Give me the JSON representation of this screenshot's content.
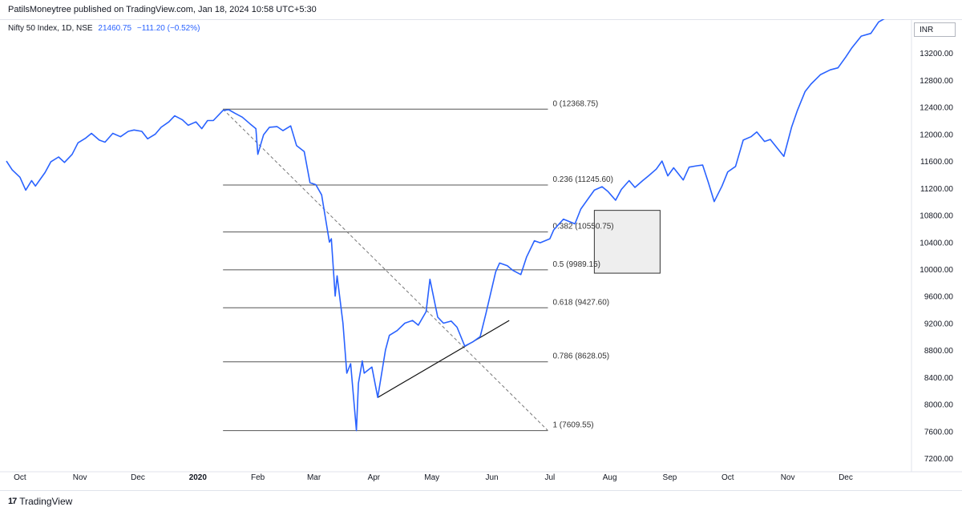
{
  "publisher": "PatilsMoneytree published on TradingView.com, Jan 18, 2024 10:58 UTC+5:30",
  "legend": {
    "symbol": "Nifty 50 Index, 1D, NSE",
    "last": "21460.75",
    "change": "−111.20 (−0.52%)"
  },
  "currency_label": "INR",
  "footer": {
    "brand": "TradingView",
    "logo_icon": "tradingview-logo-icon"
  },
  "colors": {
    "price_line": "#2962ff",
    "fib_line": "#555555",
    "axis_text": "#131722"
  },
  "chart_data": {
    "type": "line",
    "title": "",
    "xlabel": "",
    "ylabel": "",
    "ylim": [
      7000,
      13700
    ],
    "y_ticks": [
      7200,
      7600,
      8000,
      8400,
      8800,
      9200,
      9600,
      10000,
      10400,
      10800,
      11200,
      11600,
      12000,
      12400,
      12800,
      13200
    ],
    "y_tick_labels": [
      "7200.00",
      "7600.00",
      "8000.00",
      "8400.00",
      "8800.00",
      "9200.00",
      "9600.00",
      "10000.00",
      "10400.00",
      "10800.00",
      "11200.00",
      "11600.00",
      "12000.00",
      "12400.00",
      "12800.00",
      "13200.00"
    ],
    "x_labels": [
      {
        "label": "Oct",
        "date": "2019-10-01",
        "bold": false
      },
      {
        "label": "Nov",
        "date": "2019-11-01",
        "bold": false
      },
      {
        "label": "Dec",
        "date": "2019-12-01",
        "bold": false
      },
      {
        "label": "2020",
        "date": "2020-01-01",
        "bold": true
      },
      {
        "label": "Feb",
        "date": "2020-02-01",
        "bold": false
      },
      {
        "label": "Mar",
        "date": "2020-03-01",
        "bold": false
      },
      {
        "label": "Apr",
        "date": "2020-04-01",
        "bold": false
      },
      {
        "label": "May",
        "date": "2020-05-01",
        "bold": false
      },
      {
        "label": "Jun",
        "date": "2020-06-01",
        "bold": false
      },
      {
        "label": "Jul",
        "date": "2020-07-01",
        "bold": false
      },
      {
        "label": "Aug",
        "date": "2020-08-01",
        "bold": false
      },
      {
        "label": "Sep",
        "date": "2020-09-01",
        "bold": false
      },
      {
        "label": "Oct",
        "date": "2020-10-01",
        "bold": false
      },
      {
        "label": "Nov",
        "date": "2020-11-01",
        "bold": false
      },
      {
        "label": "Dec",
        "date": "2020-12-01",
        "bold": false
      }
    ],
    "series": [
      {
        "x": [
          "2019-09-24",
          "2019-09-27",
          "2019-10-01",
          "2019-10-04",
          "2019-10-07",
          "2019-10-09",
          "2019-10-11",
          "2019-10-14",
          "2019-10-17",
          "2019-10-21",
          "2019-10-24",
          "2019-10-28",
          "2019-10-31",
          "2019-11-04",
          "2019-11-07",
          "2019-11-11",
          "2019-11-14",
          "2019-11-18",
          "2019-11-22",
          "2019-11-26",
          "2019-11-29",
          "2019-12-03",
          "2019-12-06",
          "2019-12-10",
          "2019-12-13",
          "2019-12-17",
          "2019-12-20",
          "2019-12-24",
          "2019-12-27",
          "2019-12-31",
          "2020-01-03",
          "2020-01-06",
          "2020-01-09",
          "2020-01-14",
          "2020-01-17",
          "2020-01-20",
          "2020-01-24",
          "2020-01-28",
          "2020-01-31",
          "2020-02-01",
          "2020-02-04",
          "2020-02-07",
          "2020-02-11",
          "2020-02-14",
          "2020-02-18",
          "2020-02-21",
          "2020-02-25",
          "2020-02-28",
          "2020-03-02",
          "2020-03-05",
          "2020-03-09",
          "2020-03-10",
          "2020-03-12",
          "2020-03-13",
          "2020-03-16",
          "2020-03-18",
          "2020-03-20",
          "2020-03-23",
          "2020-03-24",
          "2020-03-26",
          "2020-03-27",
          "2020-03-31",
          "2020-04-03",
          "2020-04-07",
          "2020-04-09",
          "2020-04-13",
          "2020-04-17",
          "2020-04-21",
          "2020-04-24",
          "2020-04-28",
          "2020-04-30",
          "2020-05-04",
          "2020-05-07",
          "2020-05-11",
          "2020-05-14",
          "2020-05-18",
          "2020-05-22",
          "2020-05-26",
          "2020-05-29",
          "2020-06-03",
          "2020-06-05",
          "2020-06-09",
          "2020-06-12",
          "2020-06-16",
          "2020-06-19",
          "2020-06-23",
          "2020-06-26",
          "2020-07-01",
          "2020-07-03",
          "2020-07-08",
          "2020-07-14",
          "2020-07-17",
          "2020-07-21",
          "2020-07-24",
          "2020-07-28",
          "2020-07-31",
          "2020-08-04",
          "2020-08-07",
          "2020-08-11",
          "2020-08-14",
          "2020-08-18",
          "2020-08-21",
          "2020-08-25",
          "2020-08-28",
          "2020-08-31",
          "2020-09-03",
          "2020-09-08",
          "2020-09-11",
          "2020-09-15",
          "2020-09-18",
          "2020-09-21",
          "2020-09-24",
          "2020-09-28",
          "2020-10-01",
          "2020-10-05",
          "2020-10-09",
          "2020-10-13",
          "2020-10-16",
          "2020-10-20",
          "2020-10-23",
          "2020-10-28",
          "2020-10-30",
          "2020-11-03",
          "2020-11-06",
          "2020-11-10",
          "2020-11-13",
          "2020-11-18",
          "2020-11-23",
          "2020-11-27",
          "2020-12-01",
          "2020-12-04",
          "2020-12-09",
          "2020-12-14",
          "2020-12-18",
          "2020-12-23",
          "2020-12-28",
          "2020-12-31"
        ],
        "values": [
          11600,
          11470,
          11360,
          11170,
          11310,
          11230,
          11310,
          11430,
          11590,
          11660,
          11580,
          11700,
          11870,
          11940,
          12010,
          11910,
          11880,
          12010,
          11960,
          12040,
          12060,
          12040,
          11930,
          12000,
          12100,
          12180,
          12270,
          12210,
          12130,
          12180,
          12080,
          12200,
          12200,
          12350,
          12360,
          12310,
          12250,
          12150,
          12080,
          11700,
          11990,
          12100,
          12110,
          12050,
          12120,
          11830,
          11740,
          11280,
          11250,
          11100,
          10400,
          10450,
          9600,
          9900,
          9200,
          8460,
          8600,
          7610,
          8310,
          8640,
          8460,
          8550,
          8100,
          8800,
          9020,
          9090,
          9200,
          9240,
          9170,
          9370,
          9850,
          9290,
          9200,
          9230,
          9140,
          8860,
          8920,
          9000,
          9350,
          9960,
          10090,
          10050,
          9980,
          9920,
          10180,
          10420,
          10390,
          10450,
          10580,
          10740,
          10670,
          10890,
          11050,
          11170,
          11220,
          11150,
          11020,
          11180,
          11310,
          11210,
          11310,
          11380,
          11480,
          11600,
          11380,
          11500,
          11320,
          11510,
          11530,
          11540,
          11280,
          11000,
          11230,
          11440,
          11520,
          11910,
          11960,
          12030,
          11890,
          11920,
          11740,
          11670,
          12100,
          12350,
          12630,
          12740,
          12880,
          12950,
          12980,
          13140,
          13270,
          13450,
          13490,
          13660,
          13740,
          13880,
          13980
        ]
      }
    ],
    "fib_retracement": {
      "start_date": "2020-01-14",
      "end_date": "2020-06-30",
      "levels": [
        {
          "ratio": "0",
          "price": 12368.75,
          "label": "0 (12368.75)"
        },
        {
          "ratio": "0.236",
          "price": 11245.6,
          "label": "0.236 (11245.60)"
        },
        {
          "ratio": "0.382",
          "price": 10550.75,
          "label": "0.382 (10550.75)"
        },
        {
          "ratio": "0.5",
          "price": 9989.15,
          "label": "0.5 (9989.15)"
        },
        {
          "ratio": "0.618",
          "price": 9427.6,
          "label": "0.618 (9427.60)"
        },
        {
          "ratio": "0.786",
          "price": 8628.05,
          "label": "0.786 (8628.05)"
        },
        {
          "ratio": "1",
          "price": 7609.55,
          "label": "1 (7609.55)"
        }
      ]
    },
    "trend_line_dashed": {
      "start": {
        "date": "2020-01-14",
        "price": 12368.75
      },
      "end": {
        "date": "2020-06-30",
        "price": 7609.55
      }
    },
    "trend_line_solid": {
      "start": {
        "date": "2020-04-03",
        "price": 8100
      },
      "end": {
        "date": "2020-06-10",
        "price": 9240
      }
    },
    "highlight_box": {
      "start_date": "2020-07-24",
      "end_date": "2020-08-27",
      "top": 10870,
      "bottom": 9940
    },
    "x_range": [
      "2019-09-24",
      "2021-01-04"
    ],
    "grid": false,
    "legend_position": "top-left"
  }
}
